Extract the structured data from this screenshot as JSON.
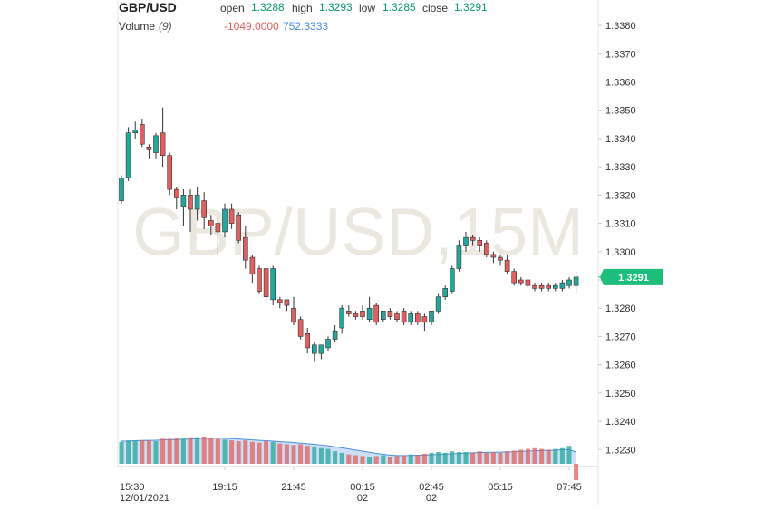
{
  "chart_data": {
    "type": "candlestick",
    "title": "GBP/USD",
    "watermark": "GBP/USD,15M",
    "ohlc_labels": {
      "open": "open",
      "high": "high",
      "low": "low",
      "close": "close"
    },
    "up_color": "#26a69a",
    "down_color": "#e0605f",
    "open": [
      1.3318,
      1.3326,
      1.3342,
      1.3345,
      1.3337,
      1.3335,
      1.3342,
      1.3334,
      1.3322,
      1.3316,
      1.332,
      1.3315,
      1.3318,
      1.3311,
      1.331,
      1.3307,
      1.3315,
      1.3313,
      1.3305,
      1.3298,
      1.3294,
      1.3294,
      1.3283,
      1.3283,
      1.3283,
      1.328,
      1.3276,
      1.3271,
      1.3264,
      1.3264,
      1.3266,
      1.3269,
      1.3273,
      1.3279,
      1.3278,
      1.3279,
      1.3276,
      1.3281,
      1.3276,
      1.3279,
      1.3278,
      1.3279,
      1.3275,
      1.3278,
      1.3277,
      1.3275,
      1.3279,
      1.3284,
      1.3286,
      1.3294,
      1.3302,
      1.3305,
      1.3304,
      1.3303,
      1.3299,
      1.3298,
      1.3297,
      1.3293,
      1.329,
      1.329,
      1.3288,
      1.3288,
      1.3288,
      1.3287,
      1.3287,
      1.3288,
      1.3288
    ],
    "high": [
      1.3327,
      1.3344,
      1.3346,
      1.3347,
      1.3338,
      1.3342,
      1.3351,
      1.3335,
      1.3323,
      1.3322,
      1.3322,
      1.3323,
      1.3321,
      1.3313,
      1.3312,
      1.3317,
      1.3317,
      1.3314,
      1.3309,
      1.3299,
      1.3295,
      1.3294,
      1.3295,
      1.3284,
      1.3283,
      1.3284,
      1.3277,
      1.3273,
      1.3268,
      1.3267,
      1.327,
      1.3274,
      1.3281,
      1.3281,
      1.3279,
      1.3281,
      1.3284,
      1.3282,
      1.3279,
      1.328,
      1.3279,
      1.328,
      1.3279,
      1.3279,
      1.3278,
      1.3279,
      1.3285,
      1.3288,
      1.3295,
      1.3304,
      1.3307,
      1.3306,
      1.3305,
      1.3304,
      1.33,
      1.3299,
      1.3299,
      1.3294,
      1.3291,
      1.329,
      1.3289,
      1.3289,
      1.3289,
      1.3289,
      1.329,
      1.3291,
      1.3293
    ],
    "low": [
      1.3317,
      1.3325,
      1.334,
      1.3337,
      1.3333,
      1.3333,
      1.333,
      1.332,
      1.3315,
      1.3309,
      1.3307,
      1.3311,
      1.3308,
      1.3306,
      1.3299,
      1.3305,
      1.3308,
      1.3303,
      1.3294,
      1.3289,
      1.3285,
      1.3282,
      1.3281,
      1.328,
      1.3279,
      1.3274,
      1.3269,
      1.3264,
      1.3261,
      1.3262,
      1.3265,
      1.3268,
      1.3271,
      1.3277,
      1.3276,
      1.3276,
      1.3275,
      1.3274,
      1.3275,
      1.3276,
      1.3275,
      1.3274,
      1.3274,
      1.3274,
      1.3272,
      1.3274,
      1.3278,
      1.3283,
      1.3285,
      1.3293,
      1.33,
      1.3302,
      1.33,
      1.3298,
      1.3296,
      1.3295,
      1.3292,
      1.3288,
      1.3288,
      1.3287,
      1.3286,
      1.3286,
      1.3286,
      1.3286,
      1.3286,
      1.3287,
      1.3285
    ],
    "close": [
      1.3326,
      1.3342,
      1.3343,
      1.3338,
      1.3336,
      1.3341,
      1.3334,
      1.3322,
      1.3319,
      1.332,
      1.3315,
      1.332,
      1.3312,
      1.3309,
      1.3307,
      1.3315,
      1.331,
      1.3304,
      1.3297,
      1.3292,
      1.3286,
      1.3284,
      1.3294,
      1.3282,
      1.3281,
      1.3275,
      1.327,
      1.3266,
      1.3267,
      1.3267,
      1.3269,
      1.3272,
      1.328,
      1.3278,
      1.3277,
      1.3277,
      1.328,
      1.3275,
      1.3279,
      1.3277,
      1.3276,
      1.3275,
      1.3278,
      1.3275,
      1.3275,
      1.3279,
      1.3284,
      1.3287,
      1.3294,
      1.3302,
      1.3305,
      1.3304,
      1.3302,
      1.3299,
      1.3298,
      1.3297,
      1.3293,
      1.3289,
      1.3289,
      1.3288,
      1.3287,
      1.3287,
      1.3287,
      1.3288,
      1.3289,
      1.329,
      1.3291
    ],
    "volume": {
      "name": "Volume",
      "period": "(9)",
      "last_value_label": "-1049.0000",
      "ma_last_label": "752.3333",
      "label_color": "#e0605f",
      "ma_color": "#4a90d9",
      "values": [
        1400,
        1500,
        1450,
        1500,
        1500,
        1450,
        1600,
        1600,
        1650,
        1600,
        1700,
        1700,
        1750,
        1650,
        1600,
        1550,
        1500,
        1450,
        1500,
        1400,
        1350,
        1450,
        1400,
        1300,
        1250,
        1200,
        1250,
        1150,
        1100,
        1000,
        950,
        800,
        700,
        600,
        550,
        500,
        450,
        500,
        550,
        450,
        500,
        550,
        600,
        550,
        650,
        700,
        750,
        700,
        800,
        750,
        750,
        700,
        800,
        700,
        750,
        700,
        800,
        850,
        900,
        950,
        1000,
        950,
        900,
        950,
        1000,
        1150,
        -1049
      ],
      "ma_values": [
        1450,
        1460,
        1480,
        1490,
        1500,
        1510,
        1530,
        1550,
        1550,
        1570,
        1590,
        1610,
        1630,
        1640,
        1650,
        1630,
        1610,
        1590,
        1560,
        1530,
        1500,
        1480,
        1450,
        1420,
        1390,
        1360,
        1320,
        1280,
        1250,
        1200,
        1150,
        1090,
        1020,
        950,
        880,
        810,
        740,
        670,
        610,
        560,
        530,
        530,
        540,
        550,
        560,
        580,
        600,
        620,
        640,
        660,
        680,
        700,
        720,
        730,
        740,
        750,
        760,
        770,
        790,
        810,
        830,
        850,
        870,
        880,
        900,
        910,
        752.3333
      ]
    },
    "ylim": [
      1.3224,
      1.3389
    ],
    "yticks": [
      {
        "value": 1.338,
        "label": "1.3380"
      },
      {
        "value": 1.337,
        "label": "1.3370"
      },
      {
        "value": 1.336,
        "label": "1.3360"
      },
      {
        "value": 1.335,
        "label": "1.3350"
      },
      {
        "value": 1.334,
        "label": "1.3340"
      },
      {
        "value": 1.333,
        "label": "1.3330"
      },
      {
        "value": 1.332,
        "label": "1.3320"
      },
      {
        "value": 1.331,
        "label": "1.3310"
      },
      {
        "value": 1.33,
        "label": "1.3300"
      },
      {
        "value": 1.329,
        "label": "1.3290"
      },
      {
        "value": 1.328,
        "label": "1.3280"
      },
      {
        "value": 1.327,
        "label": "1.3270"
      },
      {
        "value": 1.326,
        "label": "1.3260"
      },
      {
        "value": 1.325,
        "label": "1.3250"
      },
      {
        "value": 1.324,
        "label": "1.3240"
      },
      {
        "value": 1.323,
        "label": "1.3230"
      }
    ],
    "xticks": [
      {
        "value": 0,
        "label": "15:30",
        "sublabel": "12/01/2021"
      },
      {
        "value": 15,
        "label": "19:15"
      },
      {
        "value": 25,
        "label": "21:45"
      },
      {
        "value": 35,
        "label": "00:15",
        "sublabel": "02"
      },
      {
        "value": 45,
        "label": "02:45",
        "sublabel": "02"
      },
      {
        "value": 55,
        "label": "05:15"
      },
      {
        "value": 65,
        "label": "07:45"
      }
    ]
  }
}
